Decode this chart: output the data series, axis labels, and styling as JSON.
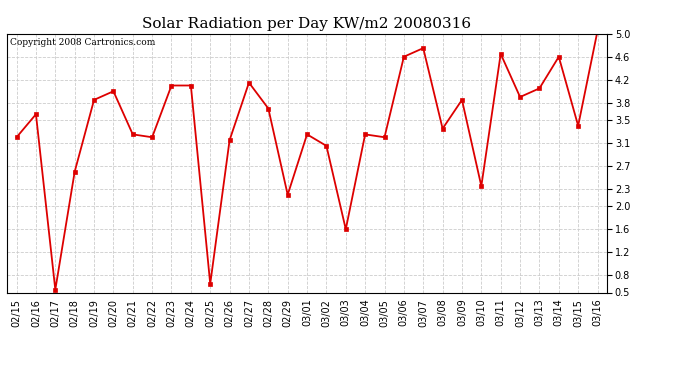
{
  "title": "Solar Radiation per Day KW/m2 20080316",
  "copyright": "Copyright 2008 Cartronics.com",
  "dates": [
    "02/15",
    "02/16",
    "02/17",
    "02/18",
    "02/19",
    "02/20",
    "02/21",
    "02/22",
    "02/23",
    "02/24",
    "02/25",
    "02/26",
    "02/27",
    "02/28",
    "02/29",
    "03/01",
    "03/02",
    "03/03",
    "03/04",
    "03/05",
    "03/06",
    "03/07",
    "03/08",
    "03/09",
    "03/10",
    "03/11",
    "03/12",
    "03/13",
    "03/14",
    "03/15",
    "03/16"
  ],
  "values": [
    3.2,
    3.6,
    0.55,
    2.6,
    3.85,
    4.0,
    3.25,
    3.2,
    4.1,
    4.1,
    0.65,
    3.15,
    4.15,
    3.7,
    2.2,
    3.25,
    3.05,
    1.6,
    3.25,
    3.2,
    4.6,
    4.75,
    3.35,
    3.85,
    2.35,
    4.65,
    3.9,
    4.05,
    4.6,
    3.4,
    5.05
  ],
  "line_color": "#dd0000",
  "marker_color": "#dd0000",
  "bg_color": "#ffffff",
  "grid_color": "#cccccc",
  "ylim": [
    0.5,
    5.0
  ],
  "yticks": [
    0.5,
    0.8,
    1.2,
    1.6,
    2.0,
    2.3,
    2.7,
    3.1,
    3.5,
    3.8,
    4.2,
    4.6,
    5.0
  ],
  "title_fontsize": 11,
  "tick_fontsize": 7,
  "copyright_fontsize": 6.5
}
